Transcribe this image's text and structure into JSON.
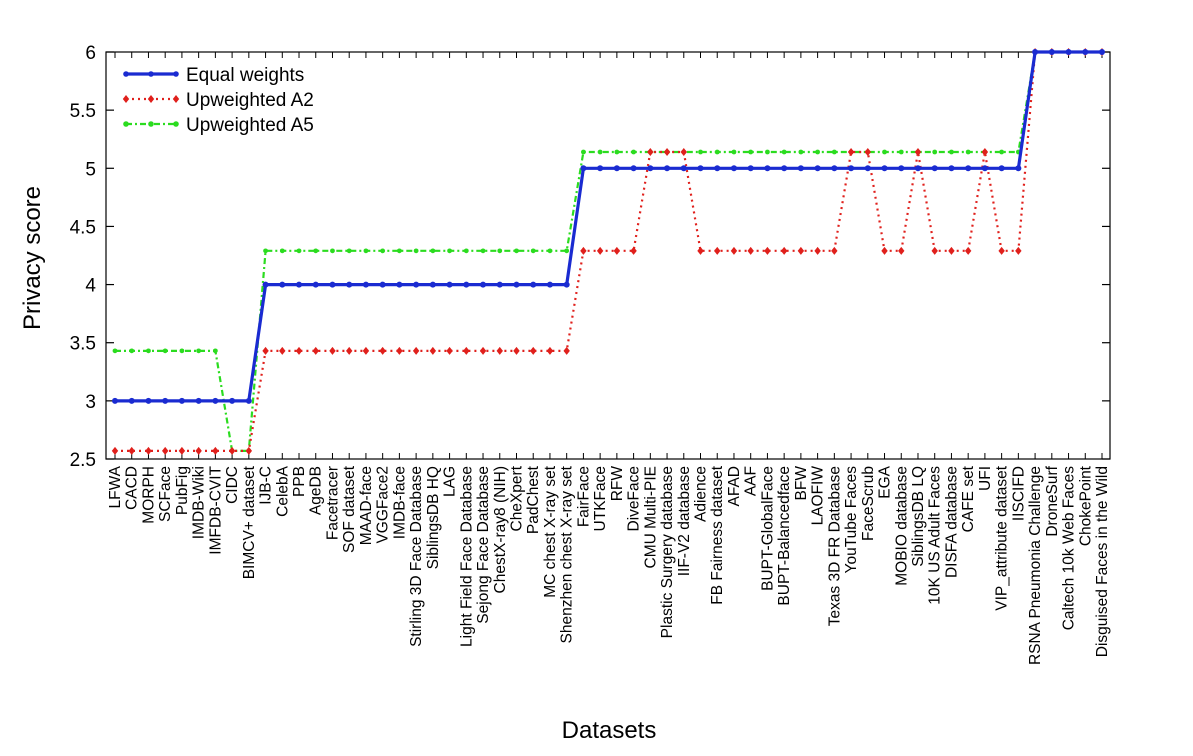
{
  "chart_data": {
    "type": "line",
    "title": "",
    "xlabel": "Datasets",
    "ylabel": "Privacy score",
    "ylim": [
      2.5,
      6
    ],
    "yticks": [
      2.5,
      3,
      3.5,
      4,
      4.5,
      5,
      5.5,
      6
    ],
    "ytick_labels": [
      "2.5",
      "3",
      "3.5",
      "4",
      "4.5",
      "5",
      "5.5",
      "6"
    ],
    "legend_position": "top-left",
    "categories": [
      "LFWA",
      "CACD",
      "MORPH",
      "SCFace",
      "PubFig",
      "IMDB-Wiki",
      "IMFDB-CVIT",
      "CIDC",
      "BIMCV+ dataset",
      "IJB-C",
      "CelebA",
      "PPB",
      "AgeDB",
      "Facetracer",
      "SOF dataset",
      "MAAD-face",
      "VGGFace2",
      "IMDB-face",
      "Stirling 3D Face Database",
      "SiblingsDB HQ",
      "LAG",
      "Light Field Face Database",
      "Sejong Face Database",
      "ChestX-ray8 (NIH)",
      "CheXpert",
      "PadChest",
      "MC chest X-ray set",
      "Shenzhen chest X-ray set",
      "FairFace",
      "UTKFace",
      "RFW",
      "DiveFace",
      "CMU Multi-PIE",
      "Plastic Surgery database",
      "IIF-V2 database",
      "Adience",
      "FB Fairness dataset",
      "AFAD",
      "AAF",
      "BUPT-GlobalFace",
      "BUPT-Balancedface",
      "BFW",
      "LAOFIW",
      "Texas 3D FR Database",
      "YouTube Faces",
      "FaceScrub",
      "EGA",
      "MOBIO database",
      "SiblingsDB LQ",
      "10K US Adult Faces",
      "DISFA database",
      "CAFE set",
      "UFI",
      "VIP_attribute dataset",
      "IISCIFD",
      "RSNA Pneumonia Challenge",
      "DroneSurf",
      "Caltech 10k Web Faces",
      "ChokePoint",
      "Disguised Faces in the Wild"
    ],
    "series": [
      {
        "name": "Equal weights",
        "color": "#1a2bd1",
        "style": "solid",
        "marker": "circle",
        "values": [
          3,
          3,
          3,
          3,
          3,
          3,
          3,
          3,
          3,
          4,
          4,
          4,
          4,
          4,
          4,
          4,
          4,
          4,
          4,
          4,
          4,
          4,
          4,
          4,
          4,
          4,
          4,
          4,
          5,
          5,
          5,
          5,
          5,
          5,
          5,
          5,
          5,
          5,
          5,
          5,
          5,
          5,
          5,
          5,
          5,
          5,
          5,
          5,
          5,
          5,
          5,
          5,
          5,
          5,
          5,
          6,
          6,
          6,
          6,
          6
        ]
      },
      {
        "name": "Upweighted A2",
        "color": "#e0201c",
        "style": "dotted",
        "marker": "diamond",
        "values": [
          2.57,
          2.57,
          2.57,
          2.57,
          2.57,
          2.57,
          2.57,
          2.57,
          2.57,
          3.43,
          3.43,
          3.43,
          3.43,
          3.43,
          3.43,
          3.43,
          3.43,
          3.43,
          3.43,
          3.43,
          3.43,
          3.43,
          3.43,
          3.43,
          3.43,
          3.43,
          3.43,
          3.43,
          4.29,
          4.29,
          4.29,
          4.29,
          5.14,
          5.14,
          5.14,
          4.29,
          4.29,
          4.29,
          4.29,
          4.29,
          4.29,
          4.29,
          4.29,
          4.29,
          5.14,
          5.14,
          4.29,
          4.29,
          5.14,
          4.29,
          4.29,
          4.29,
          5.14,
          4.29,
          4.29,
          6,
          6,
          6,
          6,
          6
        ]
      },
      {
        "name": "Upweighted A5",
        "color": "#2bdc1f",
        "style": "dashdot",
        "marker": "circle",
        "values": [
          3.43,
          3.43,
          3.43,
          3.43,
          3.43,
          3.43,
          3.43,
          2.57,
          2.57,
          4.29,
          4.29,
          4.29,
          4.29,
          4.29,
          4.29,
          4.29,
          4.29,
          4.29,
          4.29,
          4.29,
          4.29,
          4.29,
          4.29,
          4.29,
          4.29,
          4.29,
          4.29,
          4.29,
          5.14,
          5.14,
          5.14,
          5.14,
          5.14,
          5.14,
          5.14,
          5.14,
          5.14,
          5.14,
          5.14,
          5.14,
          5.14,
          5.14,
          5.14,
          5.14,
          5.14,
          5.14,
          5.14,
          5.14,
          5.14,
          5.14,
          5.14,
          5.14,
          5.14,
          5.14,
          5.14,
          6,
          6,
          6,
          6,
          6
        ]
      }
    ]
  }
}
